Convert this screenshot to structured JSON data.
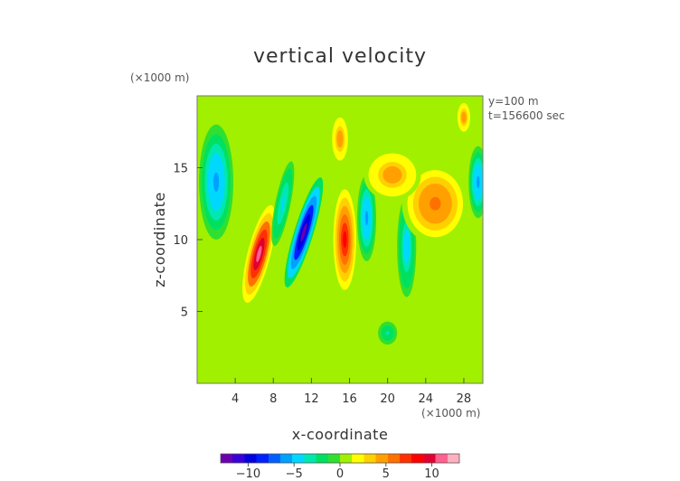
{
  "chart_data": {
    "type": "heatmap",
    "title": "vertical velocity",
    "xlabel": "x-coordinate",
    "ylabel": "z-coordinate",
    "x_unit": "(×1000 m)",
    "y_unit": "(×1000 m)",
    "annotations": [
      "y=100 m",
      "t=156600 sec"
    ],
    "xlim": [
      0,
      30
    ],
    "ylim": [
      0,
      20
    ],
    "x_ticks": [
      4,
      8,
      12,
      16,
      20,
      24,
      28
    ],
    "y_ticks": [
      5,
      10,
      15
    ],
    "colorbar": {
      "range": [
        -13,
        13
      ],
      "ticks": [
        -10,
        -5,
        0,
        5,
        10
      ],
      "colors": [
        "#6a00b0",
        "#3a00d8",
        "#0000e0",
        "#0020ff",
        "#0060ff",
        "#00a0ff",
        "#00d8ff",
        "#00e8b0",
        "#00e060",
        "#30e030",
        "#a0f000",
        "#ffff00",
        "#ffd000",
        "#ffa000",
        "#ff7000",
        "#ff3000",
        "#ff0000",
        "#e00030",
        "#ff6090",
        "#ffb0c0"
      ]
    },
    "features": [
      {
        "x": 11.2,
        "z": 10.5,
        "sx": 1.0,
        "sz": 4.0,
        "tilt": 0.3,
        "value": -12
      },
      {
        "x": 6.5,
        "z": 9.0,
        "sx": 1.2,
        "sz": 3.5,
        "tilt": 0.25,
        "value": 11
      },
      {
        "x": 15.5,
        "z": 10.0,
        "sx": 1.2,
        "sz": 3.5,
        "tilt": 0.0,
        "value": 8
      },
      {
        "x": 17.8,
        "z": 11.5,
        "sx": 1.0,
        "sz": 3.0,
        "tilt": 0.0,
        "value": -6
      },
      {
        "x": 22.0,
        "z": 9.5,
        "sx": 1.0,
        "sz": 3.5,
        "tilt": 0.0,
        "value": -5
      },
      {
        "x": 25.0,
        "z": 12.5,
        "sx": 3.5,
        "sz": 2.8,
        "tilt": 0.0,
        "value": 6
      },
      {
        "x": 20.5,
        "z": 14.5,
        "sx": 3.0,
        "sz": 1.8,
        "tilt": 0.0,
        "value": 5
      },
      {
        "x": 2.0,
        "z": 14.0,
        "sx": 1.8,
        "sz": 4.0,
        "tilt": 0.0,
        "value": -6
      },
      {
        "x": 9.0,
        "z": 12.5,
        "sx": 0.8,
        "sz": 3.0,
        "tilt": 0.2,
        "value": -4
      },
      {
        "x": 29.5,
        "z": 14.0,
        "sx": 1.0,
        "sz": 2.5,
        "tilt": 0.0,
        "value": -6
      },
      {
        "x": 28.0,
        "z": 18.5,
        "sx": 0.8,
        "sz": 1.2,
        "tilt": 0.0,
        "value": 5
      },
      {
        "x": 15.0,
        "z": 17.0,
        "sx": 1.0,
        "sz": 1.8,
        "tilt": 0.0,
        "value": 5
      },
      {
        "x": 20.0,
        "z": 3.5,
        "sx": 1.0,
        "sz": 0.8,
        "tilt": 0.0,
        "value": -3
      }
    ]
  }
}
